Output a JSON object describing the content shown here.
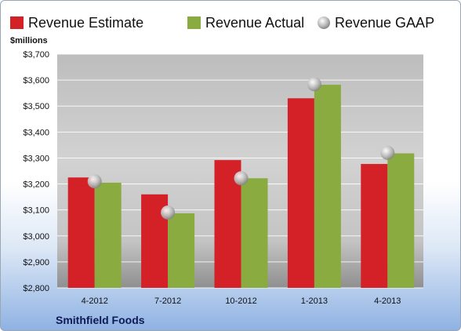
{
  "chart_data": {
    "type": "bar",
    "units_label": "$millions",
    "categories": [
      "4-2012",
      "7-2012",
      "10-2012",
      "1-2013",
      "4-2013"
    ],
    "series": [
      {
        "name": "Revenue Estimate",
        "kind": "bar",
        "color": "#d42027",
        "values": [
          3225,
          3160,
          3292,
          3530,
          3277
        ]
      },
      {
        "name": "Revenue Actual",
        "kind": "bar",
        "color": "#8aab3f",
        "values": [
          3205,
          3087,
          3222,
          3582,
          3318
        ]
      },
      {
        "name": "Revenue GAAP",
        "kind": "marker",
        "color": "#a8a8a8",
        "values": [
          3210,
          3090,
          3222,
          3584,
          3320
        ]
      }
    ],
    "y_ticks": [
      "$2,800",
      "$2,900",
      "$3,000",
      "$3,100",
      "$3,200",
      "$3,300",
      "$3,400",
      "$3,500",
      "$3,600",
      "$3,700"
    ],
    "ylim": [
      2800,
      3700
    ],
    "grid": true,
    "legend_position": "top",
    "company": "Smithfield Foods"
  }
}
